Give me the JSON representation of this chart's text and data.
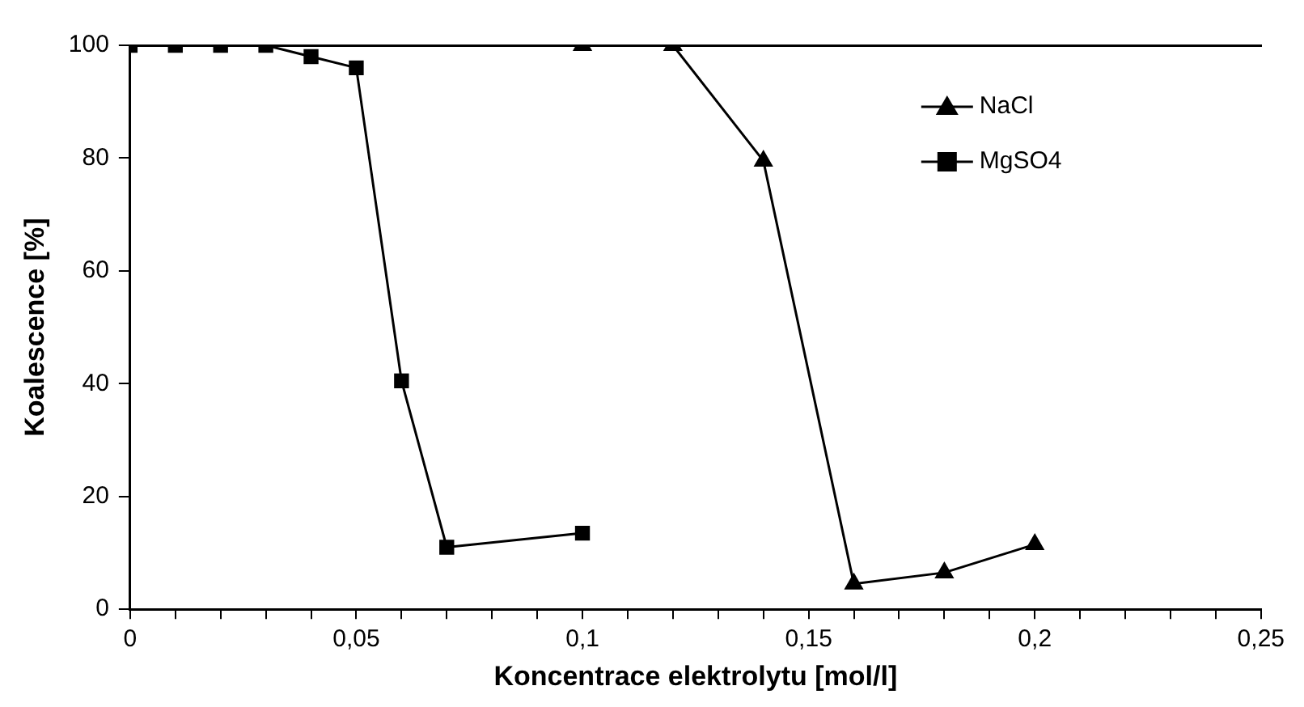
{
  "chart_data": {
    "type": "line",
    "xlabel": "Koncentrace elektrolytu [mol/l]",
    "ylabel": "Koalescence [%]",
    "xlim": [
      0,
      0.25
    ],
    "xticks": [
      {
        "value": 0,
        "label": "0"
      },
      {
        "value": 0.01,
        "label": null
      },
      {
        "value": 0.02,
        "label": null
      },
      {
        "value": 0.03,
        "label": null
      },
      {
        "value": 0.04,
        "label": null
      },
      {
        "value": 0.05,
        "label": "0,05"
      },
      {
        "value": 0.06,
        "label": null
      },
      {
        "value": 0.07,
        "label": null
      },
      {
        "value": 0.08,
        "label": null
      },
      {
        "value": 0.09,
        "label": null
      },
      {
        "value": 0.1,
        "label": "0,1"
      },
      {
        "value": 0.11,
        "label": null
      },
      {
        "value": 0.12,
        "label": null
      },
      {
        "value": 0.13,
        "label": null
      },
      {
        "value": 0.14,
        "label": null
      },
      {
        "value": 0.15,
        "label": "0,15"
      },
      {
        "value": 0.16,
        "label": null
      },
      {
        "value": 0.17,
        "label": null
      },
      {
        "value": 0.18,
        "label": null
      },
      {
        "value": 0.19,
        "label": null
      },
      {
        "value": 0.2,
        "label": "0,2"
      },
      {
        "value": 0.21,
        "label": null
      },
      {
        "value": 0.22,
        "label": null
      },
      {
        "value": 0.23,
        "label": null
      },
      {
        "value": 0.24,
        "label": null
      },
      {
        "value": 0.25,
        "label": "0,25"
      }
    ],
    "ylim": [
      0,
      100
    ],
    "yticks": [
      0,
      20,
      40,
      60,
      80,
      100
    ],
    "grid": false,
    "legend": "top right",
    "line_style": "solid",
    "series": [
      {
        "name": "NaCl",
        "color": "#000000",
        "marker": "triangle",
        "x": [
          0.1,
          0.12,
          0.14,
          0.16,
          0.18,
          0.2
        ],
        "values": [
          100,
          100,
          79.5,
          4.5,
          6.5,
          11.5
        ]
      },
      {
        "name": "MgSO4",
        "color": "#000000",
        "marker": "square",
        "x": [
          0,
          0.01,
          0.02,
          0.03,
          0.04,
          0.05,
          0.06,
          0.07,
          0.1
        ],
        "values": [
          100,
          100,
          100,
          100,
          98,
          96,
          40.5,
          11,
          13.5
        ]
      }
    ]
  }
}
